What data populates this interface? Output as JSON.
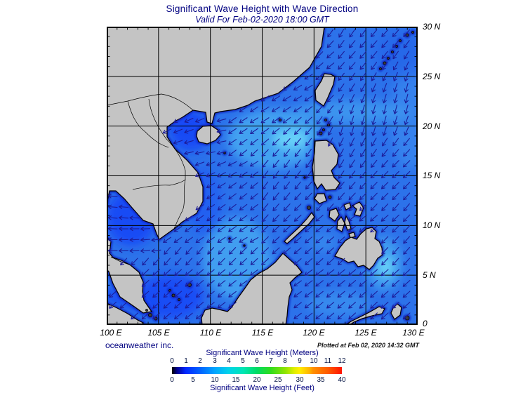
{
  "header": {
    "title": "Significant Wave Height with Wave Direction",
    "subtitle": "Valid For Feb-02-2020 18:00 GMT"
  },
  "axes": {
    "lat_labels": [
      "30 N",
      "25 N",
      "20 N",
      "15 N",
      "10 N",
      "5 N",
      "0"
    ],
    "lon_labels": [
      "100 E",
      "105 E",
      "110 E",
      "115 E",
      "120 E",
      "125 E",
      "130 E"
    ]
  },
  "legend": {
    "meters_title": "Significant Wave Height (Meters)",
    "feet_title": "Significant Wave Height (Feet)",
    "meters_ticks": [
      "0",
      "1",
      "2",
      "3",
      "4",
      "5",
      "6",
      "7",
      "8",
      "9",
      "10",
      "11",
      "12"
    ],
    "feet_ticks": [
      "0",
      "5",
      "10",
      "15",
      "20",
      "25",
      "30",
      "35",
      "40"
    ]
  },
  "footer": {
    "credit": "oceanweather inc.",
    "plotted": "Plotted at Feb 02, 2020 14:32 GMT"
  },
  "colors": {
    "title_accent": "#000080",
    "land": "#c4c4c4",
    "sea_base": "#2c72ea",
    "arrow": "#1c1c99"
  }
}
